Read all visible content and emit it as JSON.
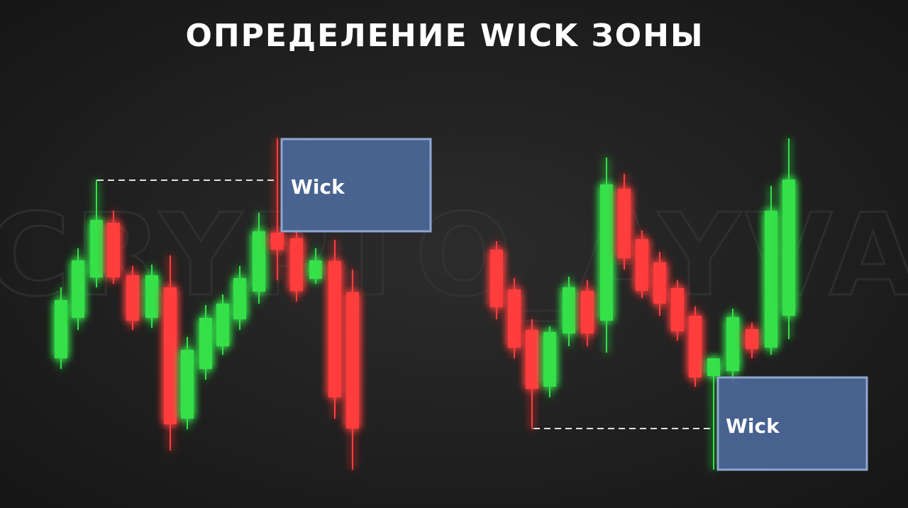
{
  "header": {
    "title": "ОПРЕДЕЛЕНИЕ WICK ЗОНЫ"
  },
  "watermark": "CRYPTO_AYVA",
  "zones": [
    {
      "label": "Wick"
    },
    {
      "label": "Wick"
    }
  ]
}
